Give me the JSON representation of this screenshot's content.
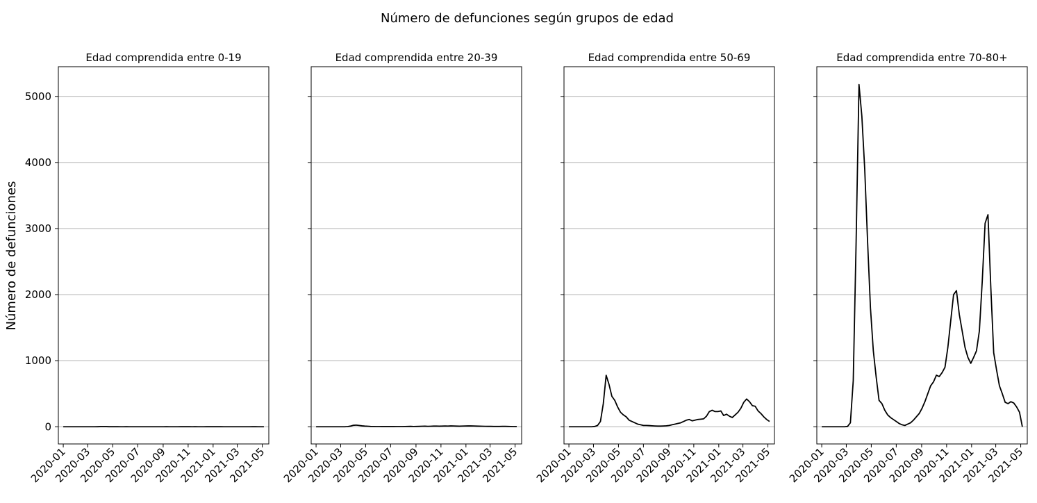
{
  "figure": {
    "suptitle": "Número de defunciones según grupos de edad",
    "ylabel": "Número de defunciones"
  },
  "chart_data": {
    "type": "line",
    "line_color": "#000000",
    "grid_color": "#b0b0b0",
    "grid": "y",
    "shared_y": true,
    "ylim": [
      -260,
      5450
    ],
    "yticks": [
      0,
      1000,
      2000,
      3000,
      4000,
      5000
    ],
    "xticks": [
      "2020-01",
      "2020-03",
      "2020-05",
      "2020-07",
      "2020-09",
      "2020-11",
      "2021-01",
      "2021-03",
      "2021-05"
    ],
    "x": [
      "2020-01-01",
      "2020-01-08",
      "2020-01-15",
      "2020-01-22",
      "2020-01-29",
      "2020-02-05",
      "2020-02-12",
      "2020-02-19",
      "2020-02-26",
      "2020-03-04",
      "2020-03-11",
      "2020-03-18",
      "2020-03-25",
      "2020-04-01",
      "2020-04-08",
      "2020-04-15",
      "2020-04-22",
      "2020-04-29",
      "2020-05-06",
      "2020-05-13",
      "2020-05-20",
      "2020-05-27",
      "2020-06-03",
      "2020-06-10",
      "2020-06-17",
      "2020-06-24",
      "2020-07-01",
      "2020-07-08",
      "2020-07-15",
      "2020-07-22",
      "2020-07-29",
      "2020-08-05",
      "2020-08-12",
      "2020-08-19",
      "2020-08-26",
      "2020-09-02",
      "2020-09-09",
      "2020-09-16",
      "2020-09-23",
      "2020-09-30",
      "2020-10-07",
      "2020-10-14",
      "2020-10-21",
      "2020-10-28",
      "2020-11-04",
      "2020-11-11",
      "2020-11-18",
      "2020-11-25",
      "2020-12-02",
      "2020-12-09",
      "2020-12-16",
      "2020-12-23",
      "2020-12-30",
      "2021-01-06",
      "2021-01-13",
      "2021-01-20",
      "2021-01-27",
      "2021-02-03",
      "2021-02-10",
      "2021-02-17",
      "2021-02-24",
      "2021-03-03",
      "2021-03-10",
      "2021-03-17",
      "2021-03-24",
      "2021-03-31",
      "2021-04-07",
      "2021-04-14",
      "2021-04-21",
      "2021-04-28",
      "2021-05-05"
    ],
    "panels": [
      {
        "title": "Edad comprendida entre 0-19",
        "xlim": [
          "2019-12-20",
          "2021-05-17"
        ],
        "values": [
          0,
          0,
          0,
          0,
          0,
          0,
          0,
          0,
          0,
          0,
          0,
          0,
          1,
          2,
          3,
          2,
          1,
          1,
          1,
          1,
          0,
          0,
          1,
          0,
          0,
          0,
          0,
          0,
          0,
          0,
          0,
          0,
          0,
          0,
          0,
          0,
          1,
          0,
          0,
          0,
          0,
          1,
          1,
          1,
          1,
          0,
          1,
          0,
          0,
          0,
          1,
          1,
          1,
          1,
          1,
          1,
          0,
          0,
          0,
          0,
          0,
          0,
          0,
          0,
          0,
          0,
          1,
          1,
          0,
          0,
          0
        ]
      },
      {
        "title": "Edad comprendida entre 20-39",
        "xlim": [
          "2019-12-20",
          "2021-05-17"
        ],
        "values": [
          0,
          0,
          0,
          0,
          0,
          0,
          0,
          0,
          0,
          0,
          0,
          3,
          10,
          22,
          25,
          20,
          14,
          10,
          8,
          5,
          4,
          3,
          3,
          2,
          2,
          2,
          2,
          2,
          3,
          3,
          3,
          4,
          5,
          6,
          4,
          5,
          6,
          8,
          9,
          7,
          8,
          10,
          11,
          9,
          10,
          12,
          11,
          13,
          12,
          10,
          9,
          11,
          12,
          13,
          13,
          12,
          10,
          9,
          8,
          7,
          6,
          6,
          5,
          5,
          5,
          6,
          6,
          5,
          4,
          3,
          2
        ]
      },
      {
        "title": "Edad comprendida entre 50-69",
        "xlim": [
          "2019-12-20",
          "2021-05-17"
        ],
        "values": [
          0,
          0,
          0,
          0,
          0,
          0,
          0,
          0,
          0,
          5,
          20,
          80,
          350,
          780,
          640,
          460,
          400,
          300,
          220,
          180,
          150,
          100,
          80,
          60,
          40,
          30,
          20,
          20,
          18,
          15,
          12,
          10,
          10,
          12,
          15,
          20,
          30,
          40,
          50,
          60,
          80,
          100,
          110,
          90,
          100,
          110,
          115,
          120,
          160,
          230,
          250,
          230,
          230,
          240,
          170,
          190,
          160,
          140,
          180,
          220,
          280,
          370,
          420,
          380,
          320,
          310,
          240,
          200,
          150,
          110,
          80
        ]
      },
      {
        "title": "Edad comprendida entre 70-80+",
        "xlim": [
          "2019-12-20",
          "2021-05-17"
        ],
        "values": [
          0,
          0,
          0,
          0,
          0,
          0,
          0,
          0,
          0,
          5,
          60,
          700,
          2800,
          5180,
          4700,
          3900,
          2800,
          1800,
          1150,
          750,
          400,
          350,
          250,
          180,
          140,
          110,
          80,
          50,
          30,
          20,
          40,
          60,
          100,
          150,
          200,
          280,
          380,
          500,
          620,
          680,
          780,
          760,
          820,
          900,
          1200,
          1600,
          2000,
          2060,
          1700,
          1450,
          1200,
          1050,
          960,
          1050,
          1150,
          1450,
          2200,
          3080,
          3210,
          2100,
          1120,
          860,
          620,
          500,
          370,
          350,
          380,
          360,
          300,
          220,
          0
        ]
      }
    ]
  }
}
